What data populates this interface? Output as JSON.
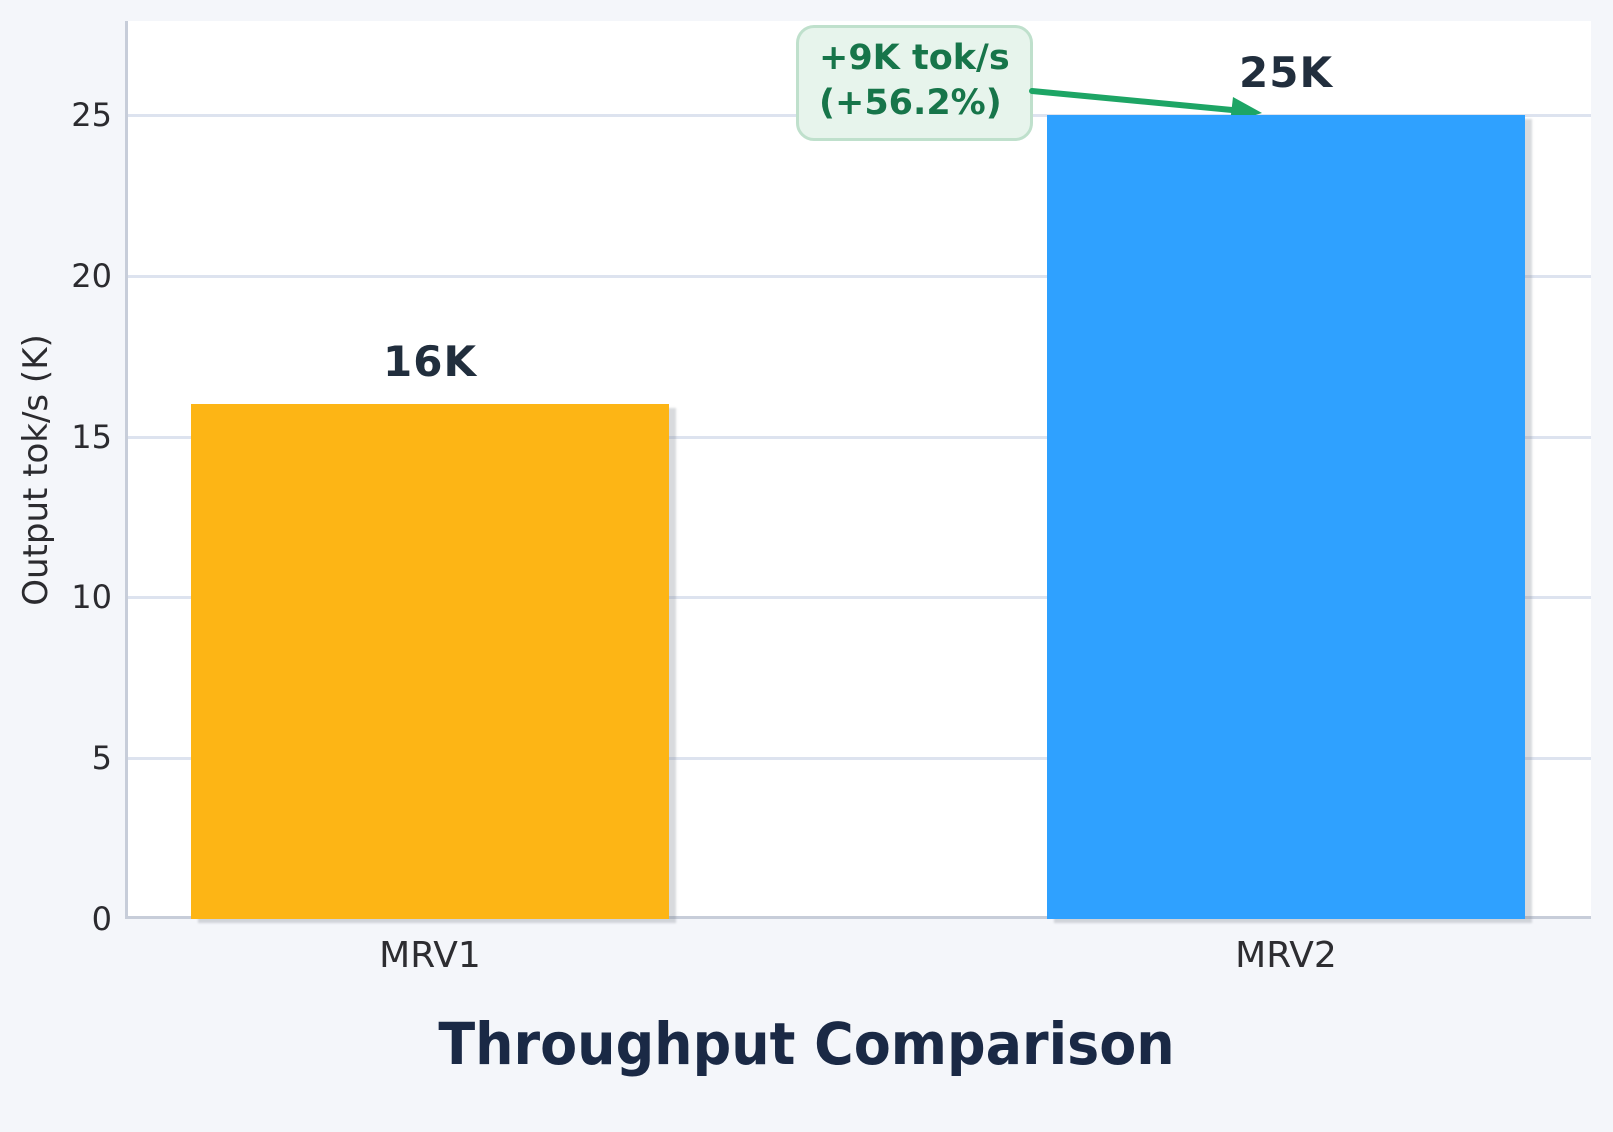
{
  "chart_data": {
    "type": "bar",
    "title": "Throughput Comparison",
    "ylabel": "Output tok/s (K)",
    "xlabel": "",
    "categories": [
      "MRV1",
      "MRV2"
    ],
    "values": [
      16,
      25
    ],
    "value_labels": [
      "16K",
      "25K"
    ],
    "yticks": [
      0,
      5,
      10,
      15,
      20,
      25
    ],
    "ylim": [
      0,
      27.9
    ],
    "grid": true,
    "legend": false,
    "bar_colors": [
      "#fdb515",
      "#2fa1ff"
    ],
    "annotation": {
      "line1": "+9K tok/s",
      "line2": "(+56.2%)",
      "text_color": "#17754a",
      "box_bg": "#e7f4ec",
      "box_border": "#bfe0cc",
      "arrow_color": "#1da565"
    },
    "colors": {
      "page_bg": "#f4f6fa",
      "plot_bg": "#ffffff",
      "gridline": "#dde3ef",
      "spine": "#c7cdd9",
      "title_text": "#1a2945",
      "tick_text": "#2b2b2f",
      "value_label_text": "#212e3d"
    }
  }
}
